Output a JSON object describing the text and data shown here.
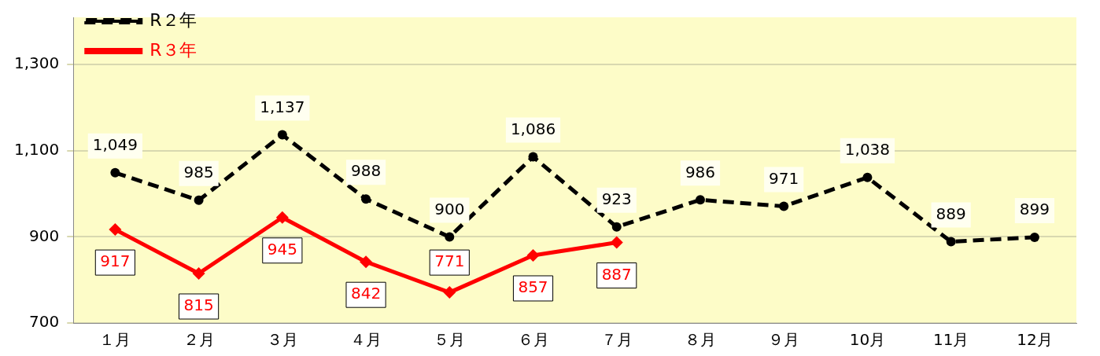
{
  "chart_data": {
    "type": "line",
    "categories": [
      "１月",
      "２月",
      "３月",
      "４月",
      "５月",
      "６月",
      "７月",
      "８月",
      "９月",
      "10月",
      "11月",
      "12月"
    ],
    "series": [
      {
        "name": "R２年",
        "color": "#000000",
        "line_style": "dashed",
        "marker": "circle",
        "values": [
          1049,
          985,
          1137,
          988,
          900,
          1086,
          923,
          986,
          971,
          1038,
          889,
          899
        ],
        "value_labels": [
          "1,049",
          "985",
          "1,137",
          "988",
          "900",
          "1,086",
          "923",
          "986",
          "971",
          "1,038",
          "889",
          "899"
        ]
      },
      {
        "name": "R３年",
        "color": "#ff0000",
        "line_style": "solid",
        "marker": "diamond",
        "values": [
          917,
          815,
          945,
          842,
          771,
          857,
          887,
          null,
          null,
          null,
          null,
          null
        ],
        "value_labels": [
          "917",
          "815",
          "945",
          "842",
          "771",
          "857",
          "887",
          null,
          null,
          null,
          null,
          null
        ]
      }
    ],
    "ylim": [
      700,
      1410
    ],
    "yticks": [
      {
        "value": 700,
        "label": "700"
      },
      {
        "value": 900,
        "label": "900"
      },
      {
        "value": 1100,
        "label": "1,100"
      },
      {
        "value": 1300,
        "label": "1,300"
      }
    ],
    "grid": "y",
    "legend": "top left"
  }
}
